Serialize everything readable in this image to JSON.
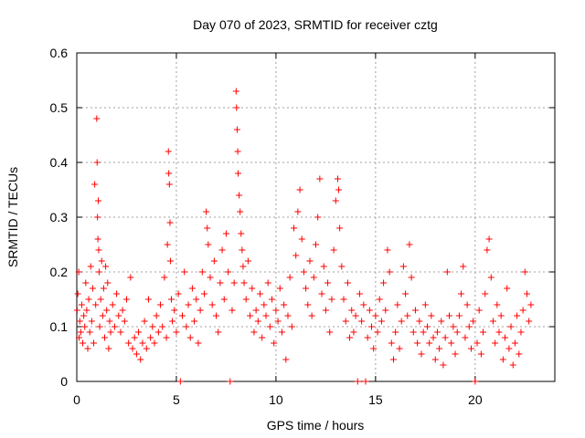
{
  "chart_data": {
    "type": "scatter",
    "title": "Day 070 of 2023, SRMTID for receiver cztg",
    "xlabel": "GPS time / hours",
    "ylabel": "SRMTID / TECUs",
    "xlim": [
      0,
      24
    ],
    "ylim": [
      0,
      0.6
    ],
    "xticks": [
      "0",
      "5",
      "10",
      "15",
      "20"
    ],
    "yticks": [
      "0",
      "0.1",
      "0.2",
      "0.3",
      "0.4",
      "0.5",
      "0.6"
    ],
    "grid": true,
    "marker": "+",
    "series": [
      {
        "name": "SRMTID",
        "color": "#ff0000",
        "points": [
          [
            0.02,
            0.13
          ],
          [
            0.05,
            0.16
          ],
          [
            0.1,
            0.2
          ],
          [
            0.12,
            0.08
          ],
          [
            0.15,
            0.11
          ],
          [
            0.2,
            0.09
          ],
          [
            0.25,
            0.14
          ],
          [
            0.3,
            0.07
          ],
          [
            0.35,
            0.12
          ],
          [
            0.4,
            0.1
          ],
          [
            0.45,
            0.18
          ],
          [
            0.5,
            0.13
          ],
          [
            0.55,
            0.06
          ],
          [
            0.6,
            0.15
          ],
          [
            0.65,
            0.09
          ],
          [
            0.7,
            0.21
          ],
          [
            0.75,
            0.11
          ],
          [
            0.8,
            0.17
          ],
          [
            0.85,
            0.07
          ],
          [
            0.9,
            0.36
          ],
          [
            0.95,
            0.14
          ],
          [
            1.0,
            0.48
          ],
          [
            1.02,
            0.4
          ],
          [
            1.04,
            0.3
          ],
          [
            1.06,
            0.26
          ],
          [
            1.08,
            0.33
          ],
          [
            1.1,
            0.24
          ],
          [
            1.12,
            0.2
          ],
          [
            1.15,
            0.1
          ],
          [
            1.2,
            0.15
          ],
          [
            1.25,
            0.22
          ],
          [
            1.3,
            0.12
          ],
          [
            1.35,
            0.17
          ],
          [
            1.4,
            0.08
          ],
          [
            1.45,
            0.21
          ],
          [
            1.5,
            0.13
          ],
          [
            1.55,
            0.18
          ],
          [
            1.6,
            0.06
          ],
          [
            1.65,
            0.11
          ],
          [
            1.7,
            0.09
          ],
          [
            1.8,
            0.14
          ],
          [
            1.9,
            0.1
          ],
          [
            2.0,
            0.16
          ],
          [
            2.1,
            0.12
          ],
          [
            2.2,
            0.09
          ],
          [
            2.3,
            0.13
          ],
          [
            2.4,
            0.11
          ],
          [
            2.5,
            0.15
          ],
          [
            2.6,
            0.07
          ],
          [
            2.7,
            0.19
          ],
          [
            2.8,
            0.06
          ],
          [
            2.9,
            0.08
          ],
          [
            3.0,
            0.05
          ],
          [
            3.1,
            0.09
          ],
          [
            3.2,
            0.04
          ],
          [
            3.3,
            0.07
          ],
          [
            3.4,
            0.11
          ],
          [
            3.5,
            0.06
          ],
          [
            3.6,
            0.15
          ],
          [
            3.7,
            0.08
          ],
          [
            3.8,
            0.1
          ],
          [
            3.9,
            0.07
          ],
          [
            4.0,
            0.12
          ],
          [
            4.1,
            0.09
          ],
          [
            4.2,
            0.14
          ],
          [
            4.3,
            0.1
          ],
          [
            4.4,
            0.19
          ],
          [
            4.5,
            0.08
          ],
          [
            4.55,
            0.25
          ],
          [
            4.6,
            0.42
          ],
          [
            4.62,
            0.38
          ],
          [
            4.65,
            0.36
          ],
          [
            4.68,
            0.29
          ],
          [
            4.7,
            0.22
          ],
          [
            4.75,
            0.15
          ],
          [
            4.8,
            0.11
          ],
          [
            4.9,
            0.13
          ],
          [
            5.0,
            0.09
          ],
          [
            5.1,
            0.16
          ],
          [
            5.2,
            0.0
          ],
          [
            5.3,
            0.12
          ],
          [
            5.4,
            0.2
          ],
          [
            5.5,
            0.1
          ],
          [
            5.6,
            0.14
          ],
          [
            5.7,
            0.08
          ],
          [
            5.8,
            0.17
          ],
          [
            5.9,
            0.11
          ],
          [
            6.0,
            0.15
          ],
          [
            6.1,
            0.07
          ],
          [
            6.2,
            0.13
          ],
          [
            6.3,
            0.2
          ],
          [
            6.4,
            0.16
          ],
          [
            6.5,
            0.31
          ],
          [
            6.55,
            0.28
          ],
          [
            6.6,
            0.25
          ],
          [
            6.7,
            0.19
          ],
          [
            6.8,
            0.14
          ],
          [
            6.9,
            0.22
          ],
          [
            7.0,
            0.12
          ],
          [
            7.1,
            0.09
          ],
          [
            7.2,
            0.18
          ],
          [
            7.3,
            0.24
          ],
          [
            7.4,
            0.15
          ],
          [
            7.5,
            0.27
          ],
          [
            7.6,
            0.2
          ],
          [
            7.7,
            0.0
          ],
          [
            7.8,
            0.13
          ],
          [
            7.9,
            0.18
          ],
          [
            8.0,
            0.53
          ],
          [
            8.02,
            0.5
          ],
          [
            8.05,
            0.46
          ],
          [
            8.08,
            0.42
          ],
          [
            8.1,
            0.38
          ],
          [
            8.15,
            0.34
          ],
          [
            8.2,
            0.31
          ],
          [
            8.25,
            0.27
          ],
          [
            8.3,
            0.24
          ],
          [
            8.35,
            0.21
          ],
          [
            8.4,
            0.18
          ],
          [
            8.5,
            0.15
          ],
          [
            8.6,
            0.22
          ],
          [
            8.7,
            0.12
          ],
          [
            8.8,
            0.17
          ],
          [
            8.9,
            0.09
          ],
          [
            9.0,
            0.13
          ],
          [
            9.1,
            0.11
          ],
          [
            9.2,
            0.16
          ],
          [
            9.3,
            0.08
          ],
          [
            9.4,
            0.14
          ],
          [
            9.5,
            0.12
          ],
          [
            9.6,
            0.18
          ],
          [
            9.7,
            0.1
          ],
          [
            9.8,
            0.15
          ],
          [
            9.9,
            0.07
          ],
          [
            10.0,
            0.13
          ],
          [
            10.1,
            0.11
          ],
          [
            10.2,
            0.17
          ],
          [
            10.3,
            0.09
          ],
          [
            10.4,
            0.14
          ],
          [
            10.5,
            0.04
          ],
          [
            10.6,
            0.12
          ],
          [
            10.7,
            0.19
          ],
          [
            10.8,
            0.1
          ],
          [
            10.9,
            0.28
          ],
          [
            11.0,
            0.23
          ],
          [
            11.1,
            0.31
          ],
          [
            11.2,
            0.35
          ],
          [
            11.3,
            0.26
          ],
          [
            11.4,
            0.2
          ],
          [
            11.5,
            0.17
          ],
          [
            11.6,
            0.14
          ],
          [
            11.7,
            0.22
          ],
          [
            11.8,
            0.12
          ],
          [
            11.9,
            0.19
          ],
          [
            12.0,
            0.25
          ],
          [
            12.1,
            0.3
          ],
          [
            12.2,
            0.37
          ],
          [
            12.3,
            0.16
          ],
          [
            12.4,
            0.21
          ],
          [
            12.5,
            0.13
          ],
          [
            12.6,
            0.18
          ],
          [
            12.7,
            0.09
          ],
          [
            12.8,
            0.15
          ],
          [
            12.9,
            0.24
          ],
          [
            13.0,
            0.33
          ],
          [
            13.1,
            0.37
          ],
          [
            13.15,
            0.35
          ],
          [
            13.2,
            0.28
          ],
          [
            13.3,
            0.21
          ],
          [
            13.4,
            0.15
          ],
          [
            13.5,
            0.11
          ],
          [
            13.6,
            0.18
          ],
          [
            13.7,
            0.08
          ],
          [
            13.8,
            0.13
          ],
          [
            13.9,
            0.09
          ],
          [
            14.0,
            0.12
          ],
          [
            14.1,
            0.0
          ],
          [
            14.2,
            0.16
          ],
          [
            14.3,
            0.11
          ],
          [
            14.4,
            0.14
          ],
          [
            14.5,
            0.0
          ],
          [
            14.6,
            0.08
          ],
          [
            14.7,
            0.13
          ],
          [
            14.8,
            0.1
          ],
          [
            14.9,
            0.06
          ],
          [
            15.0,
            0.12
          ],
          [
            15.1,
            0.09
          ],
          [
            15.2,
            0.15
          ],
          [
            15.3,
            0.11
          ],
          [
            15.4,
            0.18
          ],
          [
            15.5,
            0.13
          ],
          [
            15.6,
            0.24
          ],
          [
            15.7,
            0.2
          ],
          [
            15.8,
            0.07
          ],
          [
            15.9,
            0.04
          ],
          [
            16.0,
            0.09
          ],
          [
            16.1,
            0.14
          ],
          [
            16.2,
            0.06
          ],
          [
            16.3,
            0.11
          ],
          [
            16.4,
            0.21
          ],
          [
            16.5,
            0.16
          ],
          [
            16.6,
            0.12
          ],
          [
            16.7,
            0.25
          ],
          [
            16.8,
            0.19
          ],
          [
            16.9,
            0.09
          ],
          [
            17.0,
            0.13
          ],
          [
            17.1,
            0.07
          ],
          [
            17.2,
            0.11
          ],
          [
            17.3,
            0.05
          ],
          [
            17.4,
            0.09
          ],
          [
            17.5,
            0.14
          ],
          [
            17.6,
            0.1
          ],
          [
            17.7,
            0.07
          ],
          [
            17.8,
            0.12
          ],
          [
            17.9,
            0.08
          ],
          [
            18.0,
            0.04
          ],
          [
            18.1,
            0.09
          ],
          [
            18.2,
            0.06
          ],
          [
            18.3,
            0.11
          ],
          [
            18.4,
            0.03
          ],
          [
            18.5,
            0.08
          ],
          [
            18.6,
            0.2
          ],
          [
            18.7,
            0.12
          ],
          [
            18.8,
            0.07
          ],
          [
            18.9,
            0.1
          ],
          [
            19.0,
            0.05
          ],
          [
            19.1,
            0.09
          ],
          [
            19.2,
            0.12
          ],
          [
            19.3,
            0.16
          ],
          [
            19.4,
            0.21
          ],
          [
            19.5,
            0.08
          ],
          [
            19.6,
            0.14
          ],
          [
            19.7,
            0.1
          ],
          [
            19.8,
            0.06
          ],
          [
            19.9,
            0.11
          ],
          [
            20.0,
            0.0
          ],
          [
            20.1,
            0.07
          ],
          [
            20.2,
            0.13
          ],
          [
            20.3,
            0.05
          ],
          [
            20.4,
            0.09
          ],
          [
            20.5,
            0.16
          ],
          [
            20.6,
            0.24
          ],
          [
            20.7,
            0.26
          ],
          [
            20.8,
            0.19
          ],
          [
            20.9,
            0.11
          ],
          [
            21.0,
            0.07
          ],
          [
            21.1,
            0.14
          ],
          [
            21.2,
            0.09
          ],
          [
            21.3,
            0.12
          ],
          [
            21.4,
            0.04
          ],
          [
            21.5,
            0.08
          ],
          [
            21.6,
            0.17
          ],
          [
            21.7,
            0.06
          ],
          [
            21.8,
            0.1
          ],
          [
            21.9,
            0.03
          ],
          [
            22.0,
            0.07
          ],
          [
            22.1,
            0.12
          ],
          [
            22.2,
            0.05
          ],
          [
            22.3,
            0.09
          ],
          [
            22.4,
            0.13
          ],
          [
            22.5,
            0.2
          ],
          [
            22.6,
            0.16
          ],
          [
            22.7,
            0.11
          ],
          [
            22.8,
            0.14
          ]
        ]
      }
    ]
  }
}
